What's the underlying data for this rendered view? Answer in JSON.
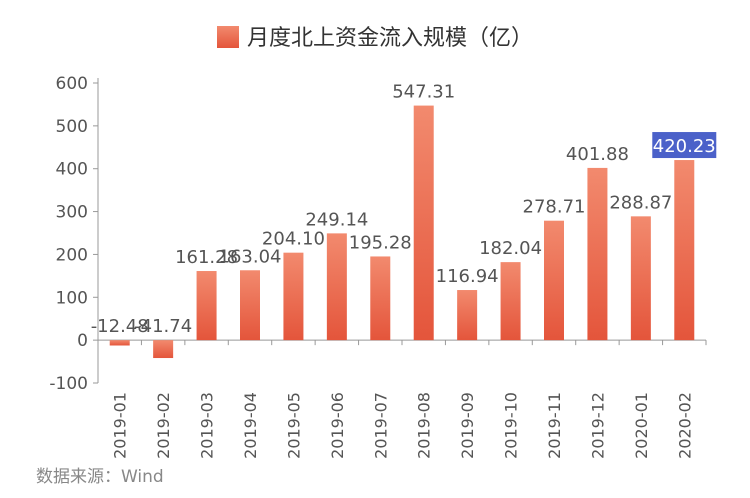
{
  "legend": {
    "label": "月度北上资金流入规模（亿）"
  },
  "source": "数据来源：Wind",
  "colors": {
    "bar_top": "#f28a6e",
    "bar_bottom": "#e4553b",
    "highlight": "#4b61c9",
    "axis": "#999999",
    "text": "#555555"
  },
  "chart_data": {
    "type": "bar",
    "title": "",
    "xlabel": "",
    "ylabel": "",
    "ylim": [
      -100,
      600
    ],
    "yticks": [
      -100,
      0,
      100,
      200,
      300,
      400,
      500,
      600
    ],
    "categories": [
      "2019-01",
      "2019-02",
      "2019-03",
      "2019-04",
      "2019-05",
      "2019-06",
      "2019-07",
      "2019-08",
      "2019-09",
      "2019-10",
      "2019-11",
      "2019-12",
      "2020-01",
      "2020-02"
    ],
    "series": [
      {
        "name": "月度北上资金流入规模（亿）",
        "values": [
          -12.48,
          -41.74,
          161.28,
          163.04,
          204.1,
          249.14,
          195.28,
          547.31,
          116.94,
          182.04,
          278.71,
          401.88,
          288.87,
          420.23
        ],
        "labels": [
          "-12.48",
          "-41.74",
          "161.28",
          "163.04",
          "204.10",
          "249.14",
          "195.28",
          "547.31",
          "116.94",
          "182.04",
          "278.71",
          "401.88",
          "288.87",
          "420.23"
        ]
      }
    ],
    "highlight_index": 13,
    "grid": false,
    "legend_position": "top-center"
  }
}
